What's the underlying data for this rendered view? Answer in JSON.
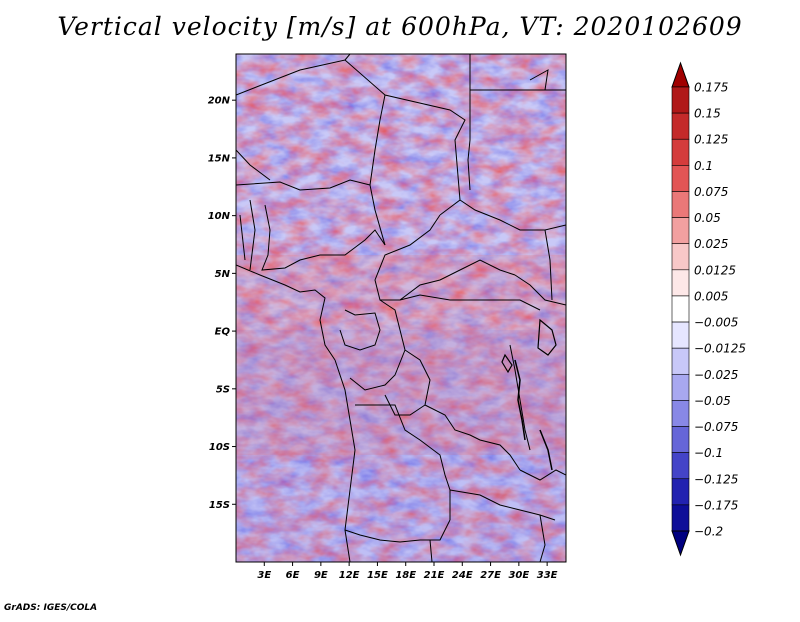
{
  "title": "Vertical velocity [m/s] at 600hPa, VT: 2020102609",
  "footer": "GrADS: IGES/COLA",
  "map": {
    "variable": "Vertical velocity",
    "units": "m/s",
    "level": "600hPa",
    "valid_time": "2020102609",
    "lon_range": [
      0,
      35
    ],
    "lat_range": [
      -20,
      24
    ],
    "lon_ticks": [
      "3E",
      "6E",
      "9E",
      "12E",
      "15E",
      "18E",
      "21E",
      "24E",
      "27E",
      "30E",
      "33E"
    ],
    "lat_ticks": [
      "20N",
      "15N",
      "10N",
      "5N",
      "EQ",
      "5S",
      "10S",
      "15S"
    ]
  },
  "colorbar": {
    "levels": [
      "0.175",
      "0.15",
      "0.125",
      "0.1",
      "0.075",
      "0.05",
      "0.025",
      "0.0125",
      "0.005",
      "−0.005",
      "−0.0125",
      "−0.025",
      "−0.05",
      "−0.075",
      "−0.1",
      "−0.125",
      "−0.175",
      "−0.2"
    ],
    "colors": [
      "#a00000",
      "#b01818",
      "#c42a2a",
      "#d43c3c",
      "#e25555",
      "#ea7878",
      "#f2a0a0",
      "#f8c8c8",
      "#fde8e8",
      "#ffffff",
      "#e6e6ff",
      "#c8c8f8",
      "#a8a8f0",
      "#8888e6",
      "#6666d8",
      "#4444c8",
      "#2222b0",
      "#0e0e98",
      "#000080"
    ]
  }
}
